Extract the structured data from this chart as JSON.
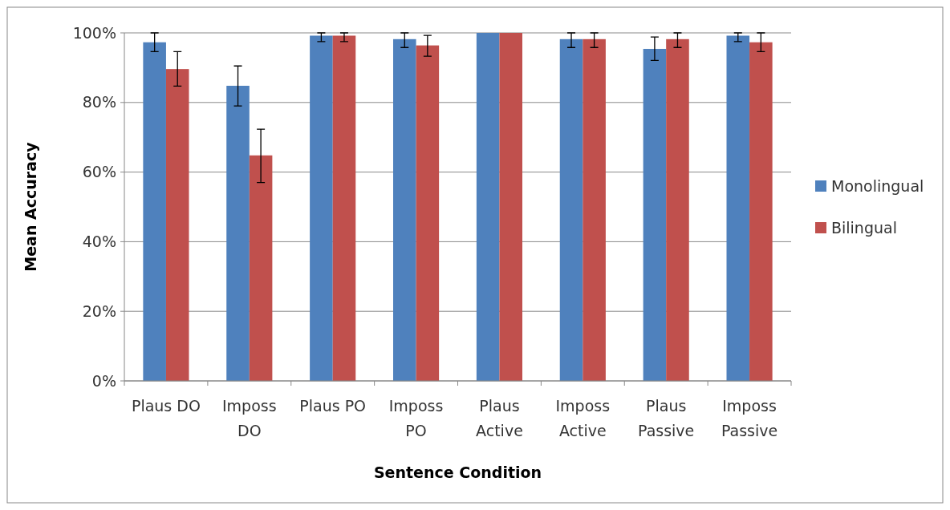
{
  "chart_data": {
    "type": "bar",
    "xlabel": "Sentence Condition",
    "ylabel": "Mean Accuracy",
    "categories": [
      "Plaus DO",
      "Imposs DO",
      "Plaus PO",
      "Imposs PO",
      "Plaus Active",
      "Imposs Active",
      "Plaus Passive",
      "Imposs Passive"
    ],
    "series": [
      {
        "name": "Monolingual",
        "color": "#4f81bd",
        "values": [
          97.3,
          84.8,
          99.2,
          98.2,
          100,
          98.2,
          95.4,
          99.2
        ],
        "errors": [
          [
            94.6,
            100
          ],
          [
            79,
            90.5
          ],
          [
            97.5,
            100
          ],
          [
            95.8,
            100
          ],
          null,
          [
            95.8,
            100
          ],
          [
            92.1,
            98.8
          ],
          [
            97.5,
            100
          ]
        ]
      },
      {
        "name": "Bilingual",
        "color": "#c0504d",
        "values": [
          89.6,
          64.8,
          99.2,
          96.4,
          100,
          98.2,
          98.2,
          97.3
        ],
        "errors": [
          [
            84.7,
            94.6
          ],
          [
            57,
            72.3
          ],
          [
            97.5,
            100
          ],
          [
            93.3,
            99.3
          ],
          null,
          [
            95.8,
            100
          ],
          [
            95.8,
            100
          ],
          [
            94.6,
            100
          ]
        ]
      }
    ],
    "ylim": [
      0,
      100
    ],
    "yticks": [
      {
        "value": 0,
        "label": "0%"
      },
      {
        "value": 20,
        "label": "20%"
      },
      {
        "value": 40,
        "label": "40%"
      },
      {
        "value": 60,
        "label": "60%"
      },
      {
        "value": 80,
        "label": "80%"
      },
      {
        "value": 100,
        "label": "100%"
      }
    ],
    "grid": "y",
    "legend": "right"
  }
}
